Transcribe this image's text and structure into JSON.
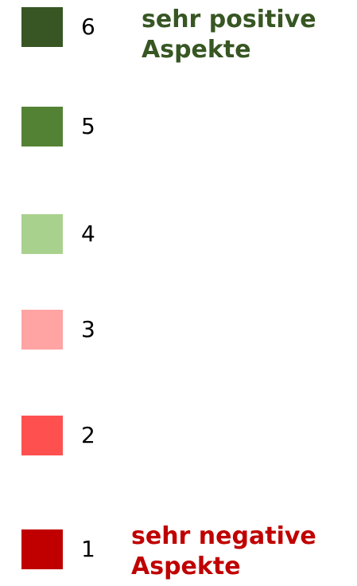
{
  "legend": {
    "items": [
      {
        "label": "6",
        "color": "#375623"
      },
      {
        "label": "5",
        "color": "#548235"
      },
      {
        "label": "4",
        "color": "#a9d18e"
      },
      {
        "label": "3",
        "color": "#ffa3a3"
      },
      {
        "label": "2",
        "color": "#ff5050"
      },
      {
        "label": "1",
        "color": "#c00000"
      }
    ],
    "top_note": {
      "lines": [
        "sehr positive",
        "Aspekte"
      ],
      "color": "#375623"
    },
    "bottom_note": {
      "lines": [
        "sehr negative",
        "Aspekte"
      ],
      "color": "#c00000"
    }
  }
}
